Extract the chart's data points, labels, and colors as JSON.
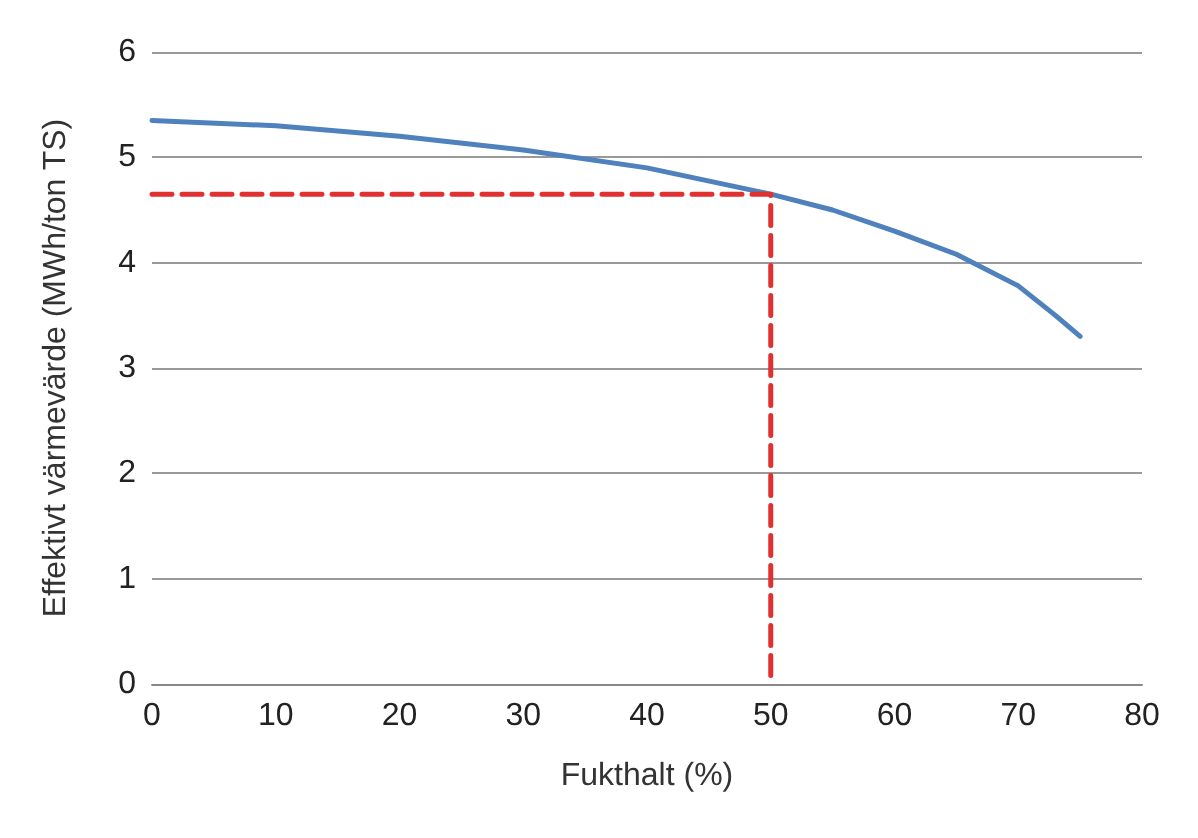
{
  "chart_data": {
    "type": "line",
    "xlabel": "Fukthalt (%)",
    "ylabel": "Effektivt värmevärde (MWh/ton TS)",
    "xlim": [
      0,
      80
    ],
    "xticks": [
      0,
      10,
      20,
      30,
      40,
      50,
      60,
      70,
      80
    ],
    "ylim": [
      0,
      6
    ],
    "yticks": [
      0,
      1,
      2,
      3,
      4,
      5,
      6
    ],
    "grid": "y",
    "marker": "none",
    "series": [
      {
        "color": "#4f81bd",
        "x": [
          0,
          10,
          20,
          30,
          40,
          50,
          55,
          60,
          65,
          70,
          73,
          75
        ],
        "values": [
          5.35,
          5.3,
          5.2,
          5.07,
          4.9,
          4.65,
          4.5,
          4.3,
          4.08,
          3.78,
          3.5,
          3.3
        ],
        "line_style": "solid"
      },
      {
        "color": "#e03030",
        "x": [
          0,
          50,
          50
        ],
        "values": [
          4.65,
          4.65,
          0
        ],
        "line_style": "dashed"
      }
    ]
  }
}
